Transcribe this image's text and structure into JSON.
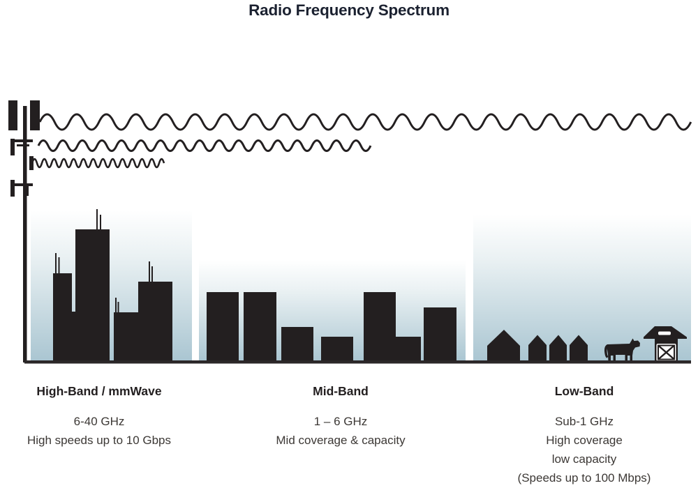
{
  "title": "Radio Frequency Spectrum",
  "bands": [
    {
      "id": "high-band",
      "heading": "High-Band / mmWave",
      "details": [
        "6-40 GHz",
        "High speeds up to 10 Gbps"
      ],
      "wave_icon": "short-wavelength-wave-icon",
      "scene_icon": "city-skyscrapers-icon"
    },
    {
      "id": "mid-band",
      "heading": "Mid-Band",
      "details": [
        "1 – 6 GHz",
        "Mid coverage & capacity"
      ],
      "wave_icon": "medium-wavelength-wave-icon",
      "scene_icon": "midrise-buildings-icon"
    },
    {
      "id": "low-band",
      "heading": "Low-Band",
      "details": [
        "Sub-1 GHz",
        "High coverage",
        "low capacity",
        "(Speeds up to 100 Mbps)"
      ],
      "wave_icon": "long-wavelength-wave-icon",
      "scene_icon": "rural-farm-icon"
    }
  ],
  "icons": {
    "tower": "cell-tower-icon",
    "cow": "cow-icon",
    "barn": "barn-icon",
    "houses": "houses-icon",
    "ground": "ground-line"
  },
  "colors": {
    "ink": "#231f20",
    "sky_top": "#ffffff",
    "sky_bottom": "#a9c5d1",
    "ground": "#2b2728",
    "title_text": "#1b2130",
    "body_text": "#3c3835"
  }
}
